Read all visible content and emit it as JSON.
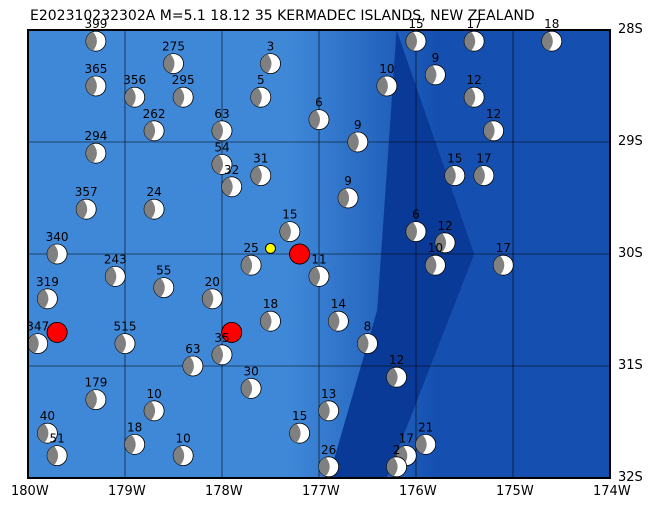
{
  "title": "E202310232302A M=5.1 18.12 35 KERMADEC ISLANDS, NEW ZEALAND",
  "map": {
    "lon_range": [
      -180,
      -174
    ],
    "lat_range": [
      -32,
      -28
    ],
    "lon_labels": [
      "180W",
      "179W",
      "178W",
      "177W",
      "176W",
      "175W",
      "174W"
    ],
    "lat_labels": [
      "28S",
      "29S",
      "30S",
      "31S",
      "32S"
    ],
    "colors": {
      "ocean_shallow": "#3f88d8",
      "ocean_deep": "#1550b0",
      "trench": "#0a3a98",
      "compression": "#808080",
      "event": "#ff0000",
      "epicenter": "#ffff00"
    },
    "grid": true
  },
  "events": [
    {
      "lon": -179.3,
      "lat": -28.1,
      "depth": "399"
    },
    {
      "lon": -179.3,
      "lat": -28.5,
      "depth": "365"
    },
    {
      "lon": -178.9,
      "lat": -28.6,
      "depth": "356"
    },
    {
      "lon": -178.7,
      "lat": -28.9,
      "depth": "262"
    },
    {
      "lon": -179.3,
      "lat": -29.1,
      "depth": "294"
    },
    {
      "lon": -179.4,
      "lat": -29.6,
      "depth": "357"
    },
    {
      "lon": -179.7,
      "lat": -30.0,
      "depth": "340"
    },
    {
      "lon": -179.8,
      "lat": -30.4,
      "depth": "319"
    },
    {
      "lon": -179.9,
      "lat": -30.8,
      "depth": "347"
    },
    {
      "lon": -179.1,
      "lat": -30.2,
      "depth": "243"
    },
    {
      "lon": -179.0,
      "lat": -30.8,
      "depth": "515"
    },
    {
      "lon": -179.3,
      "lat": -31.3,
      "depth": "179"
    },
    {
      "lon": -179.8,
      "lat": -31.6,
      "depth": "40"
    },
    {
      "lon": -179.7,
      "lat": -31.8,
      "depth": "51"
    },
    {
      "lon": -178.5,
      "lat": -28.3,
      "depth": "275"
    },
    {
      "lon": -178.4,
      "lat": -28.6,
      "depth": "295"
    },
    {
      "lon": -178.0,
      "lat": -28.9,
      "depth": "63"
    },
    {
      "lon": -178.0,
      "lat": -29.2,
      "depth": "54"
    },
    {
      "lon": -177.9,
      "lat": -29.4,
      "depth": "32"
    },
    {
      "lon": -177.6,
      "lat": -29.3,
      "depth": "31"
    },
    {
      "lon": -177.5,
      "lat": -28.3,
      "depth": "3"
    },
    {
      "lon": -177.6,
      "lat": -28.6,
      "depth": "5"
    },
    {
      "lon": -177.3,
      "lat": -29.8,
      "depth": "15"
    },
    {
      "lon": -177.7,
      "lat": -30.1,
      "depth": "25"
    },
    {
      "lon": -178.1,
      "lat": -30.4,
      "depth": "20"
    },
    {
      "lon": -178.0,
      "lat": -30.9,
      "depth": "35"
    },
    {
      "lon": -177.7,
      "lat": -31.2,
      "depth": "30"
    },
    {
      "lon": -177.2,
      "lat": -31.6,
      "depth": "15"
    },
    {
      "lon": -176.9,
      "lat": -31.4,
      "depth": "13"
    },
    {
      "lon": -176.9,
      "lat": -31.9,
      "depth": "26"
    },
    {
      "lon": -176.2,
      "lat": -31.1,
      "depth": "12"
    },
    {
      "lon": -176.5,
      "lat": -30.8,
      "depth": "8"
    },
    {
      "lon": -176.0,
      "lat": -29.8,
      "depth": "6"
    },
    {
      "lon": -175.8,
      "lat": -30.1,
      "depth": "10"
    },
    {
      "lon": -175.7,
      "lat": -29.9,
      "depth": "12"
    },
    {
      "lon": -175.1,
      "lat": -30.1,
      "depth": "17"
    },
    {
      "lon": -175.6,
      "lat": -29.3,
      "depth": "15"
    },
    {
      "lon": -175.3,
      "lat": -29.3,
      "depth": "17"
    },
    {
      "lon": -175.2,
      "lat": -28.9,
      "depth": "12"
    },
    {
      "lon": -175.4,
      "lat": -28.6,
      "depth": "12"
    },
    {
      "lon": -175.8,
      "lat": -28.4,
      "depth": "9"
    },
    {
      "lon": -175.4,
      "lat": -28.1,
      "depth": "17"
    },
    {
      "lon": -174.6,
      "lat": -28.1,
      "depth": "18"
    },
    {
      "lon": -176.0,
      "lat": -28.1,
      "depth": "15"
    },
    {
      "lon": -175.9,
      "lat": -31.7,
      "depth": "21"
    },
    {
      "lon": -176.1,
      "lat": -31.8,
      "depth": "17"
    },
    {
      "lon": -176.2,
      "lat": -31.9,
      "depth": "2"
    },
    {
      "lon": -176.8,
      "lat": -30.6,
      "depth": "14"
    },
    {
      "lon": -176.6,
      "lat": -29.0,
      "depth": "9"
    },
    {
      "lon": -176.3,
      "lat": -28.5,
      "depth": "10"
    },
    {
      "lon": -177.0,
      "lat": -28.8,
      "depth": "6"
    },
    {
      "lon": -178.7,
      "lat": -29.6,
      "depth": "24"
    },
    {
      "lon": -178.6,
      "lat": -30.3,
      "depth": "55"
    },
    {
      "lon": -178.3,
      "lat": -31.0,
      "depth": "63"
    },
    {
      "lon": -178.7,
      "lat": -31.4,
      "depth": "10"
    },
    {
      "lon": -178.9,
      "lat": -31.7,
      "depth": "18"
    },
    {
      "lon": -178.4,
      "lat": -31.8,
      "depth": "10"
    },
    {
      "lon": -177.5,
      "lat": -30.6,
      "depth": "18"
    },
    {
      "lon": -177.0,
      "lat": -30.2,
      "depth": "11"
    },
    {
      "lon": -176.7,
      "lat": -29.5,
      "depth": "9"
    }
  ],
  "highlight_events": [
    {
      "lon": -177.2,
      "lat": -30.0
    },
    {
      "lon": -177.9,
      "lat": -30.7
    },
    {
      "lon": -179.7,
      "lat": -30.7
    }
  ],
  "epicenter": {
    "lon": -177.5,
    "lat": -29.95
  }
}
